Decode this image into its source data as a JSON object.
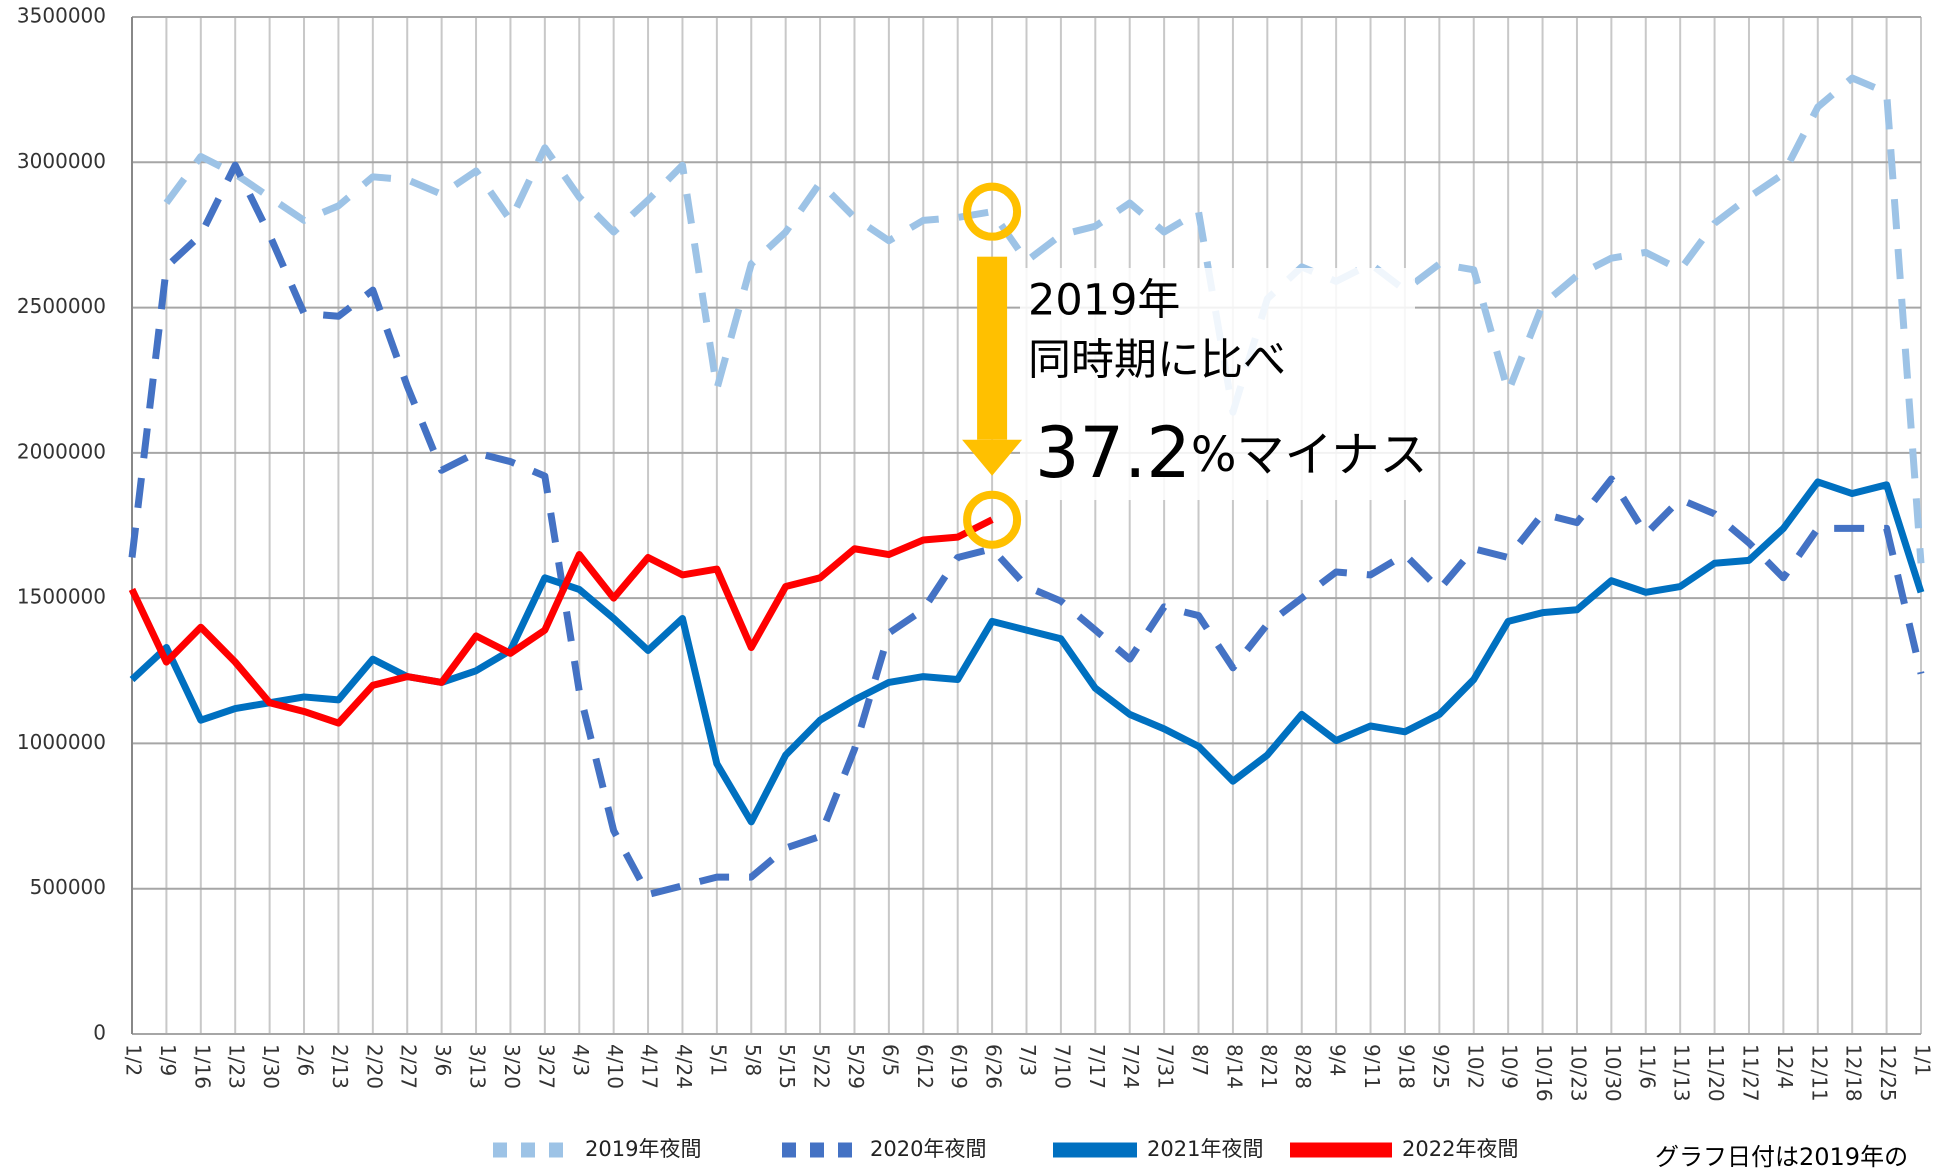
{
  "chart_data": {
    "type": "line",
    "categories": [
      "1/2",
      "1/9",
      "1/16",
      "1/23",
      "1/30",
      "2/6",
      "2/13",
      "2/20",
      "2/27",
      "3/6",
      "3/13",
      "3/20",
      "3/27",
      "4/3",
      "4/10",
      "4/17",
      "4/24",
      "5/1",
      "5/8",
      "5/15",
      "5/22",
      "5/29",
      "6/5",
      "6/12",
      "6/19",
      "6/26",
      "7/3",
      "7/10",
      "7/17",
      "7/24",
      "7/31",
      "8/7",
      "8/14",
      "8/21",
      "8/28",
      "9/4",
      "9/11",
      "9/18",
      "9/25",
      "10/2",
      "10/9",
      "10/16",
      "10/23",
      "10/30",
      "11/6",
      "11/13",
      "11/20",
      "11/27",
      "12/4",
      "12/11",
      "12/18",
      "12/25",
      "1/1"
    ],
    "series": [
      {
        "name": "2019年夜間",
        "color": "#9dc3e6",
        "style": "dashed",
        "values": [
          null,
          2860000,
          3020000,
          2960000,
          2880000,
          2800000,
          2850000,
          2950000,
          2940000,
          2890000,
          2970000,
          2800000,
          3050000,
          2880000,
          2760000,
          2870000,
          2990000,
          2220000,
          2650000,
          2760000,
          2930000,
          2810000,
          2730000,
          2800000,
          2810000,
          2830000,
          2660000,
          2750000,
          2780000,
          2860000,
          2760000,
          2830000,
          2140000,
          2530000,
          2640000,
          2590000,
          2650000,
          2560000,
          2650000,
          2630000,
          2210000,
          2510000,
          2610000,
          2670000,
          2690000,
          2630000,
          2790000,
          2880000,
          2960000,
          3190000,
          3290000,
          3240000,
          1620000
        ]
      },
      {
        "name": "2020年夜間",
        "color": "#4472c4",
        "style": "dashed",
        "values": [
          1640000,
          2640000,
          2750000,
          2990000,
          2750000,
          2480000,
          2470000,
          2560000,
          2230000,
          1940000,
          2000000,
          1970000,
          1920000,
          1180000,
          700000,
          480000,
          510000,
          540000,
          540000,
          640000,
          680000,
          980000,
          1380000,
          1460000,
          1640000,
          1670000,
          1540000,
          1490000,
          1390000,
          1290000,
          1470000,
          1440000,
          1260000,
          1410000,
          1500000,
          1590000,
          1580000,
          1650000,
          1530000,
          1670000,
          1640000,
          1790000,
          1760000,
          1910000,
          1720000,
          1840000,
          1790000,
          1690000,
          1570000,
          1740000,
          1740000,
          1740000,
          1240000
        ]
      },
      {
        "name": "2021年夜間",
        "color": "#0070c0",
        "style": "solid",
        "values": [
          1220000,
          1330000,
          1080000,
          1120000,
          1140000,
          1160000,
          1150000,
          1290000,
          1230000,
          1210000,
          1250000,
          1320000,
          1570000,
          1530000,
          1430000,
          1320000,
          1430000,
          930000,
          730000,
          960000,
          1080000,
          1150000,
          1210000,
          1230000,
          1220000,
          1420000,
          1390000,
          1360000,
          1190000,
          1100000,
          1050000,
          990000,
          870000,
          960000,
          1100000,
          1010000,
          1060000,
          1040000,
          1100000,
          1220000,
          1420000,
          1450000,
          1460000,
          1560000,
          1520000,
          1540000,
          1620000,
          1630000,
          1740000,
          1900000,
          1860000,
          1890000,
          1520000
        ]
      },
      {
        "name": "2022年夜間",
        "color": "#ff0000",
        "style": "solid",
        "values": [
          1530000,
          1280000,
          1400000,
          1280000,
          1140000,
          1110000,
          1070000,
          1200000,
          1230000,
          1210000,
          1370000,
          1310000,
          1390000,
          1650000,
          1500000,
          1640000,
          1580000,
          1600000,
          1330000,
          1540000,
          1570000,
          1670000,
          1650000,
          1700000,
          1710000,
          1770000,
          null,
          null,
          null,
          null,
          null,
          null,
          null,
          null,
          null,
          null,
          null,
          null,
          null,
          null,
          null,
          null,
          null,
          null,
          null,
          null,
          null,
          null,
          null,
          null,
          null,
          null,
          null
        ]
      }
    ],
    "ylim": [
      0,
      3500000
    ],
    "yticks": [
      0,
      500000,
      1000000,
      1500000,
      2000000,
      2500000,
      3000000,
      3500000
    ],
    "grid": true,
    "legend": "bottom",
    "annotation": {
      "lines": [
        "2019年",
        "同時期に比べ"
      ],
      "value": 37.2,
      "suffix": "%マイナス",
      "color": "#ffc000"
    },
    "footnote": "グラフ日付は2019年の"
  }
}
